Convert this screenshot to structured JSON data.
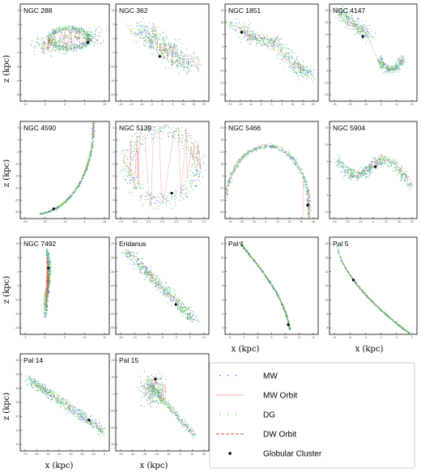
{
  "labels": {
    "ylabel": "z (kpc)",
    "xlabel": "x (kpc)"
  },
  "legend": {
    "entries": [
      {
        "key": "mw",
        "label": "MW",
        "style": "dots",
        "color": "#3b6fd4"
      },
      {
        "key": "mw_orbit",
        "label": "MW Orbit",
        "style": "dotted",
        "color": "#e8473b"
      },
      {
        "key": "dg",
        "label": "DG",
        "style": "dots",
        "color": "#4fd13c"
      },
      {
        "key": "dw_orbit",
        "label": "DW Orbit",
        "style": "dashed",
        "color": "#e8473b"
      },
      {
        "key": "gc",
        "label": "Globular Cluster",
        "style": "point",
        "color": "#000000"
      }
    ]
  },
  "colors": {
    "mw": "#3b6fd4",
    "dg": "#4fd13c",
    "orbit": "#e8473b",
    "cluster": "#000000"
  },
  "chart_data": [
    {
      "type": "scatter",
      "title": "NGC 288",
      "shape": "loop",
      "xticks": [
        "-10",
        "-5",
        "0",
        "5",
        "10"
      ],
      "yticks": [
        "4",
        "2",
        "0",
        "-2",
        "-4",
        "-6",
        "-8"
      ]
    },
    {
      "type": "scatter",
      "title": "NGC 362",
      "shape": "blob",
      "xticks": [
        "-20",
        "-15",
        "-10",
        "-5",
        "0",
        "5",
        "10",
        "15",
        "20"
      ],
      "yticks": [
        "10",
        "5",
        "0",
        "-5",
        "-10",
        "-15",
        "-20"
      ]
    },
    {
      "type": "scatter",
      "title": "NGC 1851",
      "shape": "diag",
      "xticks": [
        "-20",
        "-15",
        "-10",
        "-5",
        "0",
        "5",
        "10",
        "15",
        "20"
      ],
      "yticks": [
        "15",
        "10",
        "5",
        "0",
        "-5",
        "-10",
        "-15",
        "-20"
      ]
    },
    {
      "type": "scatter",
      "title": "NGC 4147",
      "shape": "hook",
      "xticks": [
        "-30",
        "-20",
        "-10",
        "0",
        "10",
        "20"
      ],
      "yticks": [
        "20",
        "15",
        "10",
        "5",
        "0",
        "-5",
        "-10",
        "-15"
      ]
    },
    {
      "type": "scatter",
      "title": "NGC 4590",
      "shape": "arc",
      "xticks": [
        "-30",
        "-20",
        "-10",
        "0",
        "10"
      ],
      "yticks": [
        "5",
        "0",
        "-5",
        "-10",
        "-15",
        "-20",
        "-25",
        "-30"
      ]
    },
    {
      "type": "scatter",
      "title": "NGC 5139",
      "shape": "ring",
      "xticks": [
        "-7.5",
        "-5.0",
        "-2.5",
        "0.0",
        "2.5",
        "5.0",
        "7.5"
      ],
      "yticks": [
        "6",
        "4",
        "2",
        "0",
        "-2",
        "-4",
        "-6",
        "-8"
      ]
    },
    {
      "type": "scatter",
      "title": "NGC 5466",
      "shape": "loop2",
      "xticks": [
        "-30",
        "-20",
        "-10",
        "0",
        "10",
        "20",
        "30",
        "40"
      ],
      "yticks": [
        "40",
        "30",
        "20",
        "10",
        "0",
        "-10",
        "-20",
        "-30"
      ]
    },
    {
      "type": "scatter",
      "title": "NGC 5904",
      "shape": "wave",
      "xticks": [
        "-30",
        "-20",
        "-10",
        "0",
        "10",
        "20",
        "30"
      ],
      "yticks": [
        "15",
        "10",
        "5",
        "0",
        "-5",
        "-10"
      ]
    },
    {
      "type": "scatter",
      "title": "NGC 7492",
      "shape": "vert",
      "xticks": [
        "-5",
        "0",
        "5",
        "10",
        "15"
      ],
      "yticks": [
        "10",
        "5",
        "0",
        "-5",
        "-10",
        "-15",
        "-20"
      ]
    },
    {
      "type": "scatter",
      "title": "Eridanus",
      "shape": "diag2",
      "xticks": [
        "-20",
        "-15",
        "-10",
        "-5",
        "0",
        "5",
        "10"
      ],
      "yticks": [
        "-30",
        "-35",
        "-40",
        "-45",
        "-50",
        "-55",
        "-60"
      ]
    },
    {
      "type": "scatter",
      "title": "Pal 1",
      "shape": "arc2",
      "xticks": [
        "6",
        "7",
        "8",
        "9",
        "10",
        "11",
        "12"
      ],
      "yticks": [
        "12",
        "10",
        "8",
        "6",
        "4",
        "2",
        "0"
      ]
    },
    {
      "type": "scatter",
      "title": "Pal 5",
      "shape": "arc3",
      "xticks": [
        "-8",
        "-6",
        "-4",
        "-2",
        "0",
        "2"
      ],
      "yticks": [
        "18",
        "16",
        "14",
        "12",
        "10",
        "8",
        "6"
      ]
    },
    {
      "type": "scatter",
      "title": "Pal 14",
      "shape": "diag3",
      "xticks": [
        "-70",
        "-60",
        "-50",
        "-40",
        "-30",
        "-20",
        "-10",
        "0"
      ],
      "yticks": [
        "40",
        "35",
        "30",
        "25",
        "20",
        "15",
        "10"
      ]
    },
    {
      "type": "scatter",
      "title": "Pal 15",
      "shape": "burst",
      "xticks": [
        "-50",
        "-40",
        "-30",
        "-20",
        "-10",
        "0",
        "10",
        "20"
      ],
      "yticks": [
        "20",
        "10",
        "0",
        "-10",
        "-20",
        "-30"
      ]
    }
  ]
}
